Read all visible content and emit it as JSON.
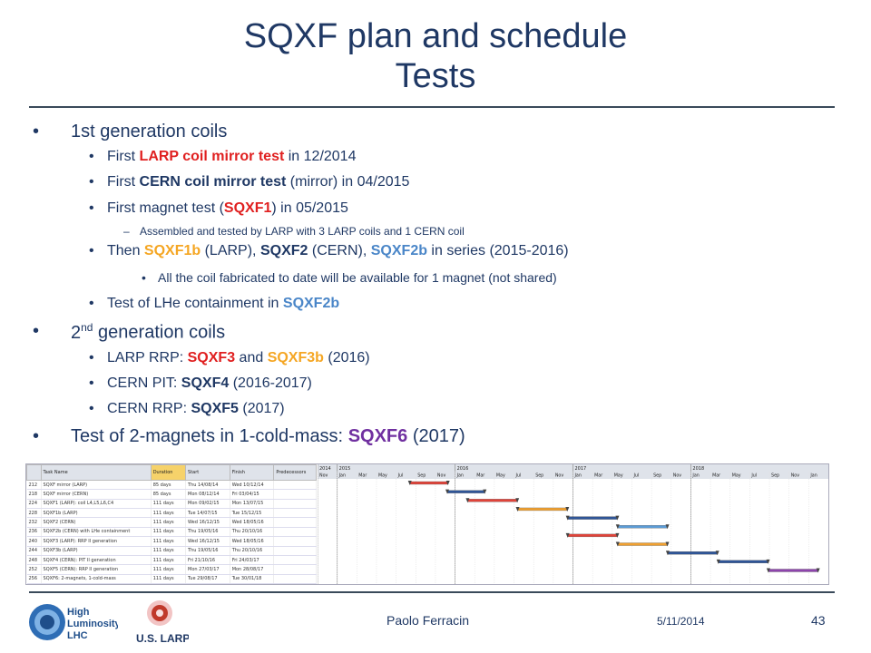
{
  "title": {
    "line1": "SQXF plan and schedule",
    "line2": "Tests"
  },
  "bullets": {
    "gen1": "1st generation coils",
    "l1a": "First ",
    "l1b": "LARP coil mirror test",
    "l1c": " in 12/2014",
    "l2a": "First ",
    "l2b": "CERN coil mirror test",
    "l2c": " (mirror) in 04/2015",
    "l3a": "First magnet test (",
    "l3b": "SQXF1",
    "l3c": ") in 05/2015",
    "l4": "Assembled and tested by LARP with 3 LARP coils and 1 CERN coil",
    "l5a": "Then ",
    "l5b": "SQXF1b",
    "l5c": " (LARP), ",
    "l5d": "SQXF2",
    "l5e": " (CERN), ",
    "l5f": "SQXF2b",
    "l5g": " in series (2015-2016)",
    "l6": "All the coil fabricated to date will be available for 1 magnet (not shared)",
    "l7a": "Test of LHe containment in ",
    "l7b": "SQXF2b",
    "gen2a": "2",
    "gen2sup": "nd",
    "gen2b": " generation coils",
    "l8a": "LARP RRP: ",
    "l8b": "SQXF3",
    "l8c": " and ",
    "l8d": "SQXF3b",
    "l8e": " (2016)",
    "l9a": "CERN PIT: ",
    "l9b": "SQXF4",
    "l9c": " (2016-2017)",
    "l10a": "CERN RRP: ",
    "l10b": "SQXF5",
    "l10c": " (2017)",
    "l11a": "Test of 2-magnets in 1-cold-mass: ",
    "l11b": "SQXF6",
    "l11c": " (2017)"
  },
  "gantt": {
    "headers": [
      "",
      "Task Name",
      "Duration",
      "Start",
      "Finish",
      "Predecessors"
    ],
    "rows": [
      [
        "212",
        "SQXF mirror (LARP)",
        "85 days",
        "Thu 14/08/14",
        "Wed 10/12/14",
        ""
      ],
      [
        "218",
        "SQXF mirror (CERN)",
        "85 days",
        "Mon 08/12/14",
        "Fri 03/04/15",
        ""
      ],
      [
        "224",
        "SQXF1 (LARP): coil L4,L5,L6,C4",
        "111 days",
        "Mon 09/02/15",
        "Mon 13/07/15",
        ""
      ],
      [
        "228",
        "SQXF1b (LARP)",
        "111 days",
        "Tue 14/07/15",
        "Tue 15/12/15",
        ""
      ],
      [
        "232",
        "SQXF2 (CERN)",
        "111 days",
        "Wed 16/12/15",
        "Wed 18/05/16",
        ""
      ],
      [
        "236",
        "SQXF2b (CERN) with LHe containment",
        "111 days",
        "Thu 19/05/16",
        "Thu 20/10/16",
        ""
      ],
      [
        "240",
        "SQXF3 (LARP): RRP II generation",
        "111 days",
        "Wed 16/12/15",
        "Wed 18/05/16",
        ""
      ],
      [
        "244",
        "SQXF3b (LARP)",
        "111 days",
        "Thu 19/05/16",
        "Thu 20/10/16",
        ""
      ],
      [
        "248",
        "SQXF4 (CERN): PIT II generation",
        "111 days",
        "Fri 21/10/16",
        "Fri 24/03/17",
        ""
      ],
      [
        "252",
        "SQXF5 (CERN): RRP II generation",
        "111 days",
        "Mon 27/03/17",
        "Mon 28/08/17",
        ""
      ],
      [
        "256",
        "SQXF6: 2-magnets, 1-cold-mass",
        "111 days",
        "Tue 29/08/17",
        "Tue 30/01/18",
        ""
      ]
    ],
    "years": [
      "2014",
      "2015",
      "2016",
      "2017",
      "2018"
    ],
    "months": [
      "Nov",
      "Jan",
      "Mar",
      "May",
      "Jul",
      "Sep",
      "Nov",
      "Jan",
      "Mar",
      "May",
      "Jul",
      "Sep",
      "Nov",
      "Jan",
      "Mar",
      "May",
      "Jul",
      "Sep",
      "Nov",
      "Jan",
      "Mar",
      "May",
      "Jul",
      "Sep",
      "Nov",
      "Jan"
    ],
    "bar_colors": [
      "#e0443a",
      "#2f5597",
      "#e0443a",
      "#f0a030",
      "#2f5597",
      "#5b9bd5",
      "#e0443a",
      "#f0a030",
      "#2f5597",
      "#2f5597",
      "#8e44ad"
    ]
  },
  "footer": {
    "author": "Paolo Ferracin",
    "date": "5/11/2014",
    "page": "43",
    "logo1_line1": "High",
    "logo1_line2": "Luminosity",
    "logo1_line3": "LHC",
    "logo2": "U.S. LARP"
  }
}
